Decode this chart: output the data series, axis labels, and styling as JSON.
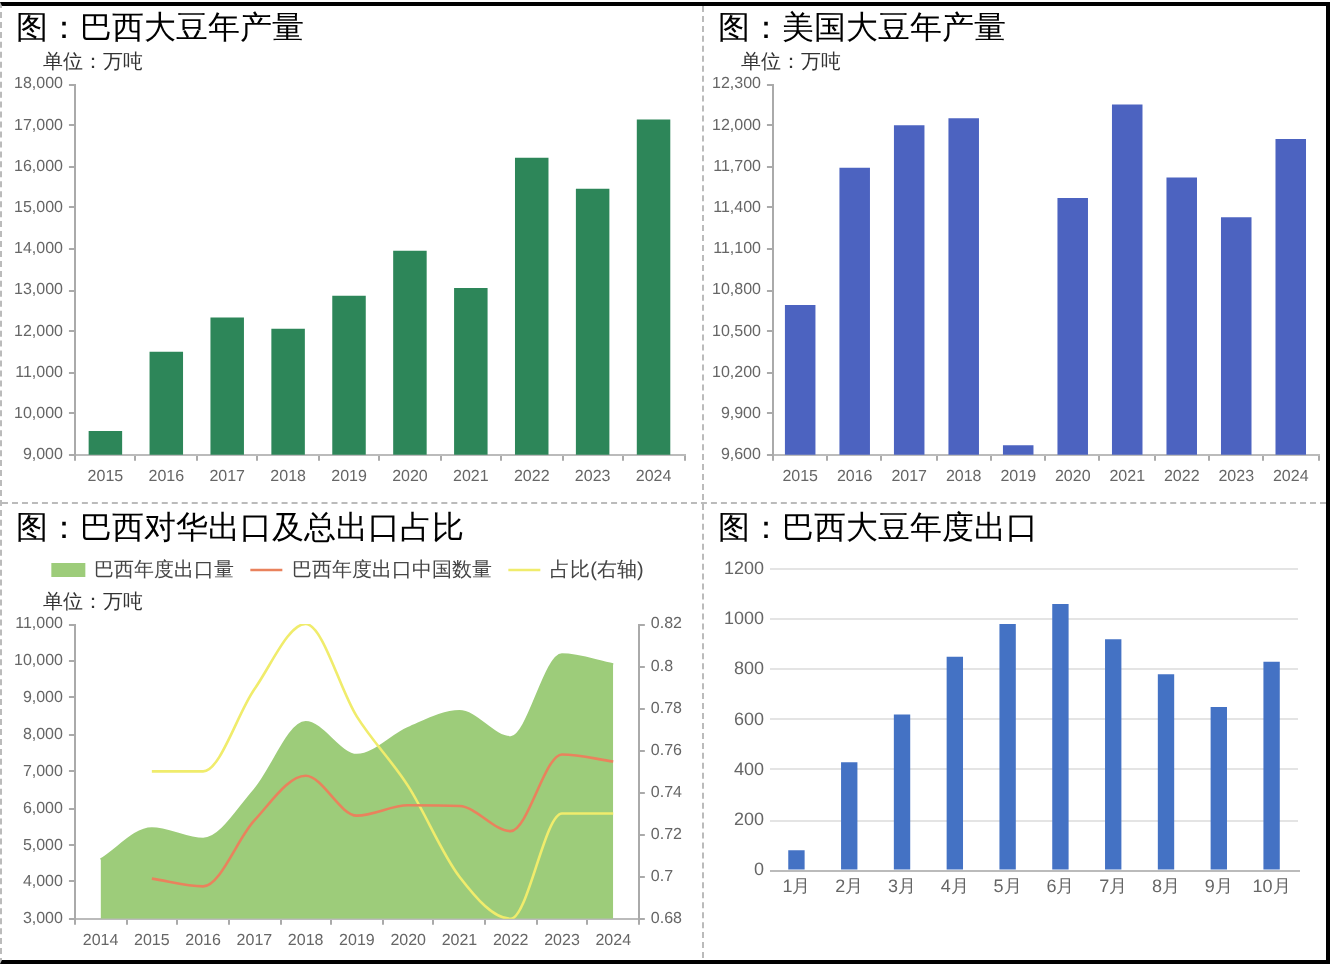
{
  "chart_data": [
    {
      "type": "bar",
      "title": "图：巴西大豆年产量",
      "ylabel": "单位：万吨",
      "categories": [
        "2015",
        "2016",
        "2017",
        "2018",
        "2019",
        "2020",
        "2021",
        "2022",
        "2023",
        "2024"
      ],
      "values": [
        9580,
        11500,
        12330,
        12060,
        12860,
        13950,
        13050,
        16210,
        15460,
        17140
      ],
      "color": "#2d8659",
      "ylim": [
        9000,
        18000
      ],
      "yticks": [
        {
          "value": 9000,
          "label": "9,000"
        },
        {
          "value": 10000,
          "label": "10,000"
        },
        {
          "value": 11000,
          "label": "11,000"
        },
        {
          "value": 12000,
          "label": "12,000"
        },
        {
          "value": 13000,
          "label": "13,000"
        },
        {
          "value": 14000,
          "label": "14,000"
        },
        {
          "value": 15000,
          "label": "15,000"
        },
        {
          "value": 16000,
          "label": "16,000"
        },
        {
          "value": 17000,
          "label": "17,000"
        },
        {
          "value": 18000,
          "label": "18,000"
        }
      ],
      "grid": false
    },
    {
      "type": "bar",
      "title": "图：美国大豆年产量",
      "ylabel": "单位：万吨",
      "categories": [
        "2015",
        "2016",
        "2017",
        "2018",
        "2019",
        "2020",
        "2021",
        "2022",
        "2023",
        "2024"
      ],
      "values": [
        10690,
        11690,
        12000,
        12050,
        9670,
        11470,
        12150,
        11620,
        11330,
        11900
      ],
      "color": "#4c63c0",
      "ylim": [
        9600,
        12300
      ],
      "yticks": [
        {
          "value": 9600,
          "label": "9,600"
        },
        {
          "value": 9900,
          "label": "9,900"
        },
        {
          "value": 10200,
          "label": "10,200"
        },
        {
          "value": 10500,
          "label": "10,500"
        },
        {
          "value": 10800,
          "label": "10,800"
        },
        {
          "value": 11100,
          "label": "11,100"
        },
        {
          "value": 11400,
          "label": "11,400"
        },
        {
          "value": 11700,
          "label": "11,700"
        },
        {
          "value": 12000,
          "label": "12,000"
        },
        {
          "value": 12300,
          "label": "12,300"
        }
      ],
      "grid": false
    },
    {
      "type": "line",
      "title": "图：巴西对华出口及总出口占比",
      "ylabel": "单位：万吨",
      "categories": [
        "2014",
        "2015",
        "2016",
        "2017",
        "2018",
        "2019",
        "2020",
        "2021",
        "2022",
        "2023",
        "2024"
      ],
      "series": [
        {
          "type": "area",
          "name": "巴西年度出口量",
          "color": "#9dcc7a",
          "values": [
            4610,
            5460,
            5170,
            6500,
            8340,
            7450,
            8180,
            8640,
            7930,
            10180,
            9910
          ]
        },
        {
          "type": "line",
          "name": "巴西年度出口中国数量",
          "color": "#e9825d",
          "values": [
            null,
            4090,
            3880,
            5670,
            6880,
            5800,
            6080,
            6060,
            5380,
            7460,
            7270
          ]
        },
        {
          "type": "line",
          "name": "占比(右轴)",
          "color": "#f0ec6c",
          "axis": "y2",
          "values": [
            null,
            0.75,
            0.75,
            0.789,
            0.82,
            0.776,
            0.743,
            0.7,
            0.68,
            0.73,
            0.73
          ]
        }
      ],
      "ylim": [
        3000,
        11000
      ],
      "yticks": [
        {
          "value": 3000,
          "label": "3,000"
        },
        {
          "value": 4000,
          "label": "4,000"
        },
        {
          "value": 5000,
          "label": "5,000"
        },
        {
          "value": 6000,
          "label": "6,000"
        },
        {
          "value": 7000,
          "label": "7,000"
        },
        {
          "value": 8000,
          "label": "8,000"
        },
        {
          "value": 9000,
          "label": "9,000"
        },
        {
          "value": 10000,
          "label": "10,000"
        },
        {
          "value": 11000,
          "label": "11,000"
        }
      ],
      "y2lim": [
        0.68,
        0.82
      ],
      "y2ticks": [
        0.68,
        0.7,
        0.72,
        0.74,
        0.76,
        0.78,
        0.8,
        0.82
      ],
      "legend": "top",
      "grid": false
    },
    {
      "type": "bar",
      "title": "图：巴西大豆年度出口",
      "categories": [
        "1月",
        "2月",
        "3月",
        "4月",
        "5月",
        "6月",
        "7月",
        "8月",
        "9月",
        "10月"
      ],
      "values": [
        80,
        430,
        620,
        850,
        980,
        1060,
        920,
        780,
        650,
        830
      ],
      "color": "#4472c4",
      "ylim": [
        0,
        1200
      ],
      "yticks": [
        0,
        200,
        400,
        600,
        800,
        1000,
        1200
      ],
      "grid": "y"
    }
  ]
}
